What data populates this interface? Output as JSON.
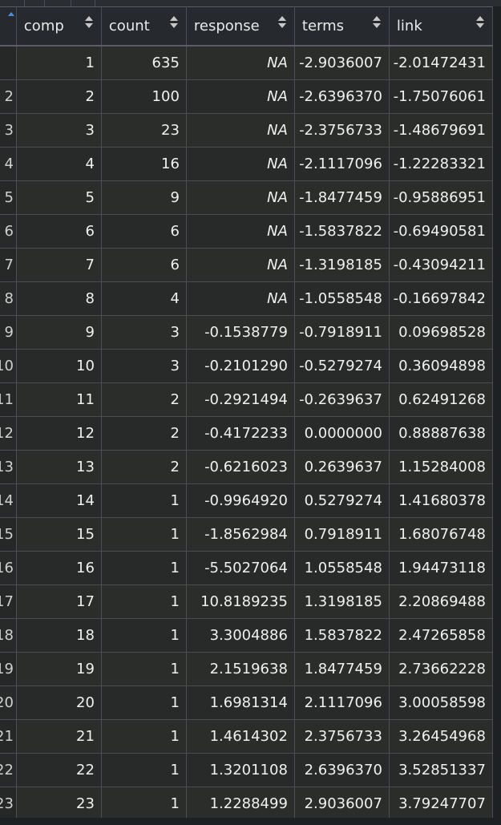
{
  "table": {
    "columns": [
      {
        "key": "comp",
        "label": "comp"
      },
      {
        "key": "count",
        "label": "count"
      },
      {
        "key": "response",
        "label": "response"
      },
      {
        "key": "terms",
        "label": "terms"
      },
      {
        "key": "link",
        "label": "link"
      }
    ],
    "row_labels": [
      "",
      "2",
      "3",
      "4",
      "5",
      "6",
      "7",
      "8",
      "9",
      "10",
      "11",
      "12",
      "13",
      "14",
      "15",
      "16",
      "17",
      "18",
      "19",
      "20",
      "21",
      "22",
      "23"
    ],
    "rows": [
      {
        "comp": "1",
        "count": "635",
        "response": "NA",
        "terms": "-2.9036007",
        "link": "-2.01472431"
      },
      {
        "comp": "2",
        "count": "100",
        "response": "NA",
        "terms": "-2.6396370",
        "link": "-1.75076061"
      },
      {
        "comp": "3",
        "count": "23",
        "response": "NA",
        "terms": "-2.3756733",
        "link": "-1.48679691"
      },
      {
        "comp": "4",
        "count": "16",
        "response": "NA",
        "terms": "-2.1117096",
        "link": "-1.22283321"
      },
      {
        "comp": "5",
        "count": "9",
        "response": "NA",
        "terms": "-1.8477459",
        "link": "-0.95886951"
      },
      {
        "comp": "6",
        "count": "6",
        "response": "NA",
        "terms": "-1.5837822",
        "link": "-0.69490581"
      },
      {
        "comp": "7",
        "count": "6",
        "response": "NA",
        "terms": "-1.3198185",
        "link": "-0.43094211"
      },
      {
        "comp": "8",
        "count": "4",
        "response": "NA",
        "terms": "-1.0558548",
        "link": "-0.16697842"
      },
      {
        "comp": "9",
        "count": "3",
        "response": "-0.1538779",
        "terms": "-0.7918911",
        "link": "0.09698528"
      },
      {
        "comp": "10",
        "count": "3",
        "response": "-0.2101290",
        "terms": "-0.5279274",
        "link": "0.36094898"
      },
      {
        "comp": "11",
        "count": "2",
        "response": "-0.2921494",
        "terms": "-0.2639637",
        "link": "0.62491268"
      },
      {
        "comp": "12",
        "count": "2",
        "response": "-0.4172233",
        "terms": "0.0000000",
        "link": "0.88887638"
      },
      {
        "comp": "13",
        "count": "2",
        "response": "-0.6216023",
        "terms": "0.2639637",
        "link": "1.15284008"
      },
      {
        "comp": "14",
        "count": "1",
        "response": "-0.9964920",
        "terms": "0.5279274",
        "link": "1.41680378"
      },
      {
        "comp": "15",
        "count": "1",
        "response": "-1.8562984",
        "terms": "0.7918911",
        "link": "1.68076748"
      },
      {
        "comp": "16",
        "count": "1",
        "response": "-5.5027064",
        "terms": "1.0558548",
        "link": "1.94473118"
      },
      {
        "comp": "17",
        "count": "1",
        "response": "10.8189235",
        "terms": "1.3198185",
        "link": "2.20869488"
      },
      {
        "comp": "18",
        "count": "1",
        "response": "3.3004886",
        "terms": "1.5837822",
        "link": "2.47265858"
      },
      {
        "comp": "19",
        "count": "1",
        "response": "2.1519638",
        "terms": "1.8477459",
        "link": "2.73662228"
      },
      {
        "comp": "20",
        "count": "1",
        "response": "1.6981314",
        "terms": "2.1117096",
        "link": "3.00058598"
      },
      {
        "comp": "21",
        "count": "1",
        "response": "1.4614302",
        "terms": "2.3756733",
        "link": "3.26454968"
      },
      {
        "comp": "22",
        "count": "1",
        "response": "1.3201108",
        "terms": "2.6396370",
        "link": "3.52851337"
      },
      {
        "comp": "23",
        "count": "1",
        "response": "1.2288499",
        "terms": "2.9036007",
        "link": "3.79247707"
      }
    ]
  }
}
